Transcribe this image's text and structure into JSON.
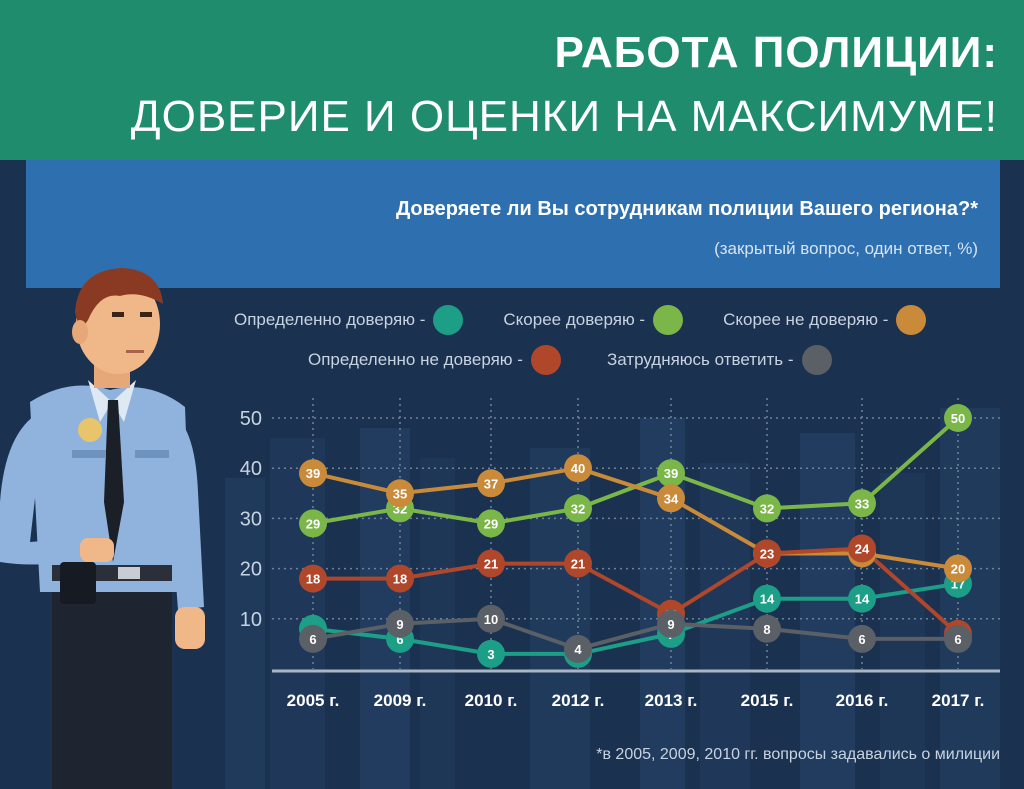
{
  "header": {
    "title_line_1": "РАБОТА ПОЛИЦИИ:",
    "title_line_2": "ДОВЕРИЕ И ОЦЕНКИ НА МАКСИМУМЕ!"
  },
  "question": {
    "text": "Доверяете ли Вы сотрудникам полиции Вашего региона?*",
    "subtitle": "(закрытый вопрос, один ответ, %)"
  },
  "legend": {
    "items": [
      {
        "label": "Определенно доверяю -",
        "color": "#1d9e86"
      },
      {
        "label": "Скорее доверяю -",
        "color": "#7ab648"
      },
      {
        "label": "Скорее не доверяю -",
        "color": "#c98a3a"
      },
      {
        "label": "Определенно не доверяю -",
        "color": "#b0472b"
      },
      {
        "label": "Затрудняюсь ответить -",
        "color": "#5b5f66"
      }
    ]
  },
  "footnote": "*в 2005, 2009, 2010 гг. вопросы задавались о милиции",
  "theme": {
    "header_bg": "#1f8c6e",
    "question_bg": "#2e6fb0",
    "page_bg": "#1b3150",
    "grid_color": "#6f8299"
  },
  "chart_data": {
    "type": "line",
    "title": "Доверяете ли Вы сотрудникам полиции Вашего региона?*",
    "categories": [
      "2005 г.",
      "2009 г.",
      "2010 г.",
      "2012 г.",
      "2013 г.",
      "2015 г.",
      "2016 г.",
      "2017 г."
    ],
    "ylim": [
      0,
      50
    ],
    "yticks": [
      10,
      20,
      30,
      40,
      50
    ],
    "grid": true,
    "legend_position": "top",
    "series": [
      {
        "name": "Определенно доверяю",
        "color": "#1d9e86",
        "values": [
          8,
          6,
          3,
          3,
          7,
          14,
          14,
          17
        ]
      },
      {
        "name": "Скорее доверяю",
        "color": "#7ab648",
        "values": [
          29,
          32,
          29,
          32,
          39,
          32,
          33,
          50
        ]
      },
      {
        "name": "Скорее не доверяю",
        "color": "#c98a3a",
        "values": [
          39,
          35,
          37,
          40,
          34,
          23,
          23,
          20
        ]
      },
      {
        "name": "Определенно не доверяю",
        "color": "#b0472b",
        "values": [
          18,
          18,
          21,
          21,
          11,
          23,
          24,
          7
        ]
      },
      {
        "name": "Затрудняюсь ответить",
        "color": "#5b5f66",
        "values": [
          6,
          9,
          10,
          4,
          9,
          8,
          6,
          6
        ]
      }
    ]
  }
}
